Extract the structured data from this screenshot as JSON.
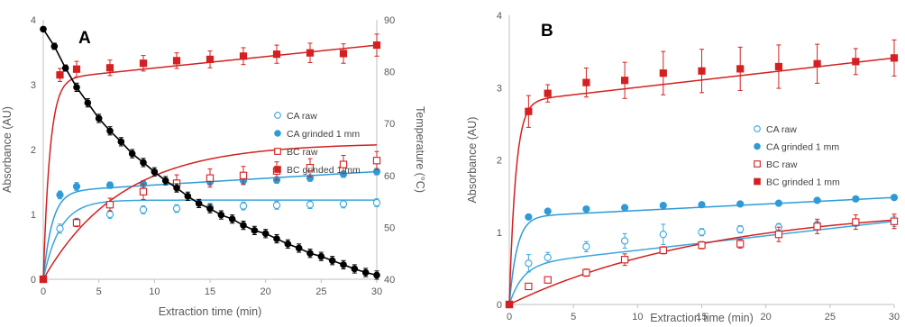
{
  "colors": {
    "ca": "#2e9bd6",
    "ca_raw": "#3aa6dc",
    "bc": "#d42020",
    "temp": "#000000"
  },
  "chart_data": [
    {
      "type": "scatter",
      "panel_label": "A",
      "xlabel": "Extraction time (min)",
      "ylabel": "Absorbance (AU)",
      "y2label": "Temperature (°C)",
      "xlim": [
        0,
        30
      ],
      "ylim": [
        0,
        4
      ],
      "y2lim": [
        40,
        90
      ],
      "x_ticks": [
        0,
        5,
        10,
        15,
        20,
        25,
        30
      ],
      "y_ticks": [
        0,
        1,
        2,
        3,
        4
      ],
      "y2_ticks": [
        40,
        50,
        60,
        70,
        80,
        90
      ],
      "grid": false,
      "legend_position": "center-right",
      "series": [
        {
          "name": "CA raw",
          "key": "ca_raw",
          "marker": "circle-open",
          "color_key": "ca_raw",
          "x": [
            0,
            1.5,
            3,
            6,
            9,
            12,
            15,
            18,
            21,
            24,
            27,
            30
          ],
          "y": [
            0,
            0.78,
            0.88,
            1.0,
            1.07,
            1.09,
            1.11,
            1.13,
            1.14,
            1.15,
            1.16,
            1.18
          ],
          "err": [
            0,
            0.07,
            0.06,
            0.06,
            0.06,
            0.06,
            0.06,
            0.06,
            0.06,
            0.06,
            0.06,
            0.06
          ],
          "fit": {
            "a": 1.22,
            "k": 1.5,
            "b": 0,
            "c": 0
          }
        },
        {
          "name": "CA grinded 1 mm",
          "key": "ca_grinded",
          "marker": "circle-filled",
          "color_key": "ca",
          "x": [
            0,
            1.5,
            3,
            6,
            9,
            12,
            15,
            18,
            21,
            24,
            27,
            30
          ],
          "y": [
            0,
            1.3,
            1.43,
            1.45,
            1.47,
            1.48,
            1.5,
            1.52,
            1.53,
            1.56,
            1.62,
            1.66
          ],
          "err": [
            0,
            0.06,
            0.06,
            0.05,
            0.05,
            0.05,
            0.05,
            0.05,
            0.05,
            0.05,
            0.05,
            0.05
          ],
          "fit": {
            "a": 0.06,
            "k": 0.8,
            "b": 1.35,
            "c": 4.0
          }
        },
        {
          "name": "BC raw",
          "key": "bc_raw",
          "marker": "square-open",
          "color_key": "bc",
          "x": [
            0,
            3,
            6,
            9,
            12,
            15,
            18,
            21,
            24,
            27,
            30
          ],
          "y": [
            0,
            0.87,
            1.15,
            1.35,
            1.48,
            1.56,
            1.6,
            1.67,
            1.72,
            1.77,
            1.83
          ],
          "err": [
            0,
            0.06,
            0.1,
            0.12,
            0.13,
            0.14,
            0.14,
            0.14,
            0.14,
            0.14,
            0.14
          ],
          "fit": {
            "a": 2.1,
            "k": 7.0,
            "b": 0,
            "c": 0
          }
        },
        {
          "name": "BC grinded 1 mm",
          "key": "bc_grinded",
          "marker": "square-filled",
          "color_key": "bc",
          "x": [
            0,
            1.5,
            3,
            6,
            9,
            12,
            15,
            18,
            21,
            24,
            27,
            30
          ],
          "y": [
            0,
            3.15,
            3.24,
            3.26,
            3.33,
            3.37,
            3.39,
            3.44,
            3.47,
            3.49,
            3.48,
            3.61
          ],
          "err": [
            0,
            0.1,
            0.12,
            0.12,
            0.12,
            0.12,
            0.13,
            0.13,
            0.14,
            0.15,
            0.15,
            0.17
          ],
          "fit": {
            "a": 0.28,
            "k": 0.6,
            "b": 3.08,
            "c": 15.0
          }
        },
        {
          "name": "Temperature",
          "key": "temperature",
          "marker": "dot-line",
          "color_key": "temp",
          "axis": "y2",
          "x": [
            0,
            1,
            2,
            3,
            4,
            5,
            6,
            7,
            8,
            9,
            10,
            11,
            12,
            13,
            14,
            15,
            16,
            17,
            18,
            19,
            20,
            21,
            22,
            23,
            24,
            25,
            26,
            27,
            28,
            29,
            30
          ],
          "y": [
            88.2,
            84.9,
            80.7,
            77.0,
            74.0,
            71.0,
            68.6,
            66.5,
            64.2,
            62.5,
            60.7,
            59.0,
            57.6,
            56.0,
            54.6,
            53.6,
            52.4,
            51.6,
            50.4,
            49.4,
            48.8,
            47.8,
            46.8,
            46.0,
            45.0,
            44.4,
            43.6,
            42.8,
            42.0,
            41.3,
            40.8
          ],
          "err": [
            0,
            0.6,
            0.6,
            0.8,
            0.8,
            0.8,
            0.8,
            0.8,
            0.8,
            0.8,
            0.8,
            0.8,
            0.8,
            0.8,
            0.8,
            0.8,
            0.8,
            0.8,
            0.8,
            0.8,
            0.8,
            0.8,
            0.8,
            0.8,
            0.8,
            0.8,
            0.8,
            0.8,
            0.8,
            0.8,
            0.8
          ]
        }
      ]
    },
    {
      "type": "scatter",
      "panel_label": "B",
      "xlabel": "Extraction time (min)",
      "ylabel": "Absorbance (AU)",
      "xlim": [
        0,
        30
      ],
      "ylim": [
        0,
        4
      ],
      "x_ticks": [
        0,
        5,
        10,
        15,
        20,
        25,
        30
      ],
      "y_ticks": [
        0,
        1,
        2,
        3,
        4
      ],
      "grid": false,
      "legend_position": "center-right",
      "series": [
        {
          "name": "CA raw",
          "key": "ca_raw",
          "marker": "circle-open",
          "color_key": "ca_raw",
          "x": [
            0,
            1.5,
            3,
            6,
            9,
            12,
            15,
            18,
            21,
            24,
            27,
            30
          ],
          "y": [
            0,
            0.57,
            0.65,
            0.8,
            0.88,
            0.97,
            1.0,
            1.04,
            1.07,
            1.1,
            1.13,
            1.15
          ],
          "err": [
            0,
            0.12,
            0.07,
            0.07,
            0.1,
            0.14,
            0.05,
            0.05,
            0.05,
            0.05,
            0.05,
            0.07
          ],
          "fit": {
            "a": 0.63,
            "k": 1.0,
            "b": 0.55,
            "c": 13.0
          }
        },
        {
          "name": "CA grinded 1 mm",
          "key": "ca_grinded",
          "marker": "circle-filled",
          "color_key": "ca",
          "x": [
            0,
            1.5,
            3,
            6,
            9,
            12,
            15,
            18,
            21,
            24,
            27,
            30
          ],
          "y": [
            0,
            1.21,
            1.29,
            1.32,
            1.34,
            1.37,
            1.38,
            1.39,
            1.4,
            1.44,
            1.46,
            1.48
          ],
          "err": [
            0,
            0.03,
            0.03,
            0.03,
            0.03,
            0.03,
            0.03,
            0.03,
            0.03,
            0.03,
            0.03,
            0.03
          ],
          "fit": {
            "a": 0.05,
            "k": 0.6,
            "b": 1.21,
            "c": 30.0
          }
        },
        {
          "name": "BC raw",
          "key": "bc_raw",
          "marker": "square-open",
          "color_key": "bc",
          "x": [
            0,
            1.5,
            3,
            6,
            9,
            12,
            15,
            18,
            21,
            24,
            27,
            30
          ],
          "y": [
            0,
            0.25,
            0.34,
            0.44,
            0.62,
            0.75,
            0.82,
            0.84,
            0.97,
            1.08,
            1.14,
            1.15
          ],
          "err": [
            0,
            0.04,
            0.04,
            0.05,
            0.08,
            0.05,
            0.05,
            0.06,
            0.1,
            0.1,
            0.1,
            0.1
          ],
          "fit": {
            "a": 1.38,
            "k": 16.0,
            "b": 0,
            "c": 0
          }
        },
        {
          "name": "BC grinded 1 mm",
          "key": "bc_grinded",
          "marker": "square-filled",
          "color_key": "bc",
          "x": [
            0,
            1.5,
            3,
            6,
            9,
            12,
            15,
            18,
            21,
            24,
            27,
            30
          ],
          "y": [
            0,
            2.67,
            2.92,
            3.07,
            3.1,
            3.2,
            3.23,
            3.26,
            3.29,
            3.33,
            3.36,
            3.41
          ],
          "err": [
            0,
            0.22,
            0.12,
            0.2,
            0.25,
            0.3,
            0.3,
            0.3,
            0.3,
            0.27,
            0.18,
            0.25
          ],
          "fit": {
            "a": 0.17,
            "k": 0.5,
            "b": 2.8,
            "c": 10.0
          }
        }
      ]
    }
  ]
}
